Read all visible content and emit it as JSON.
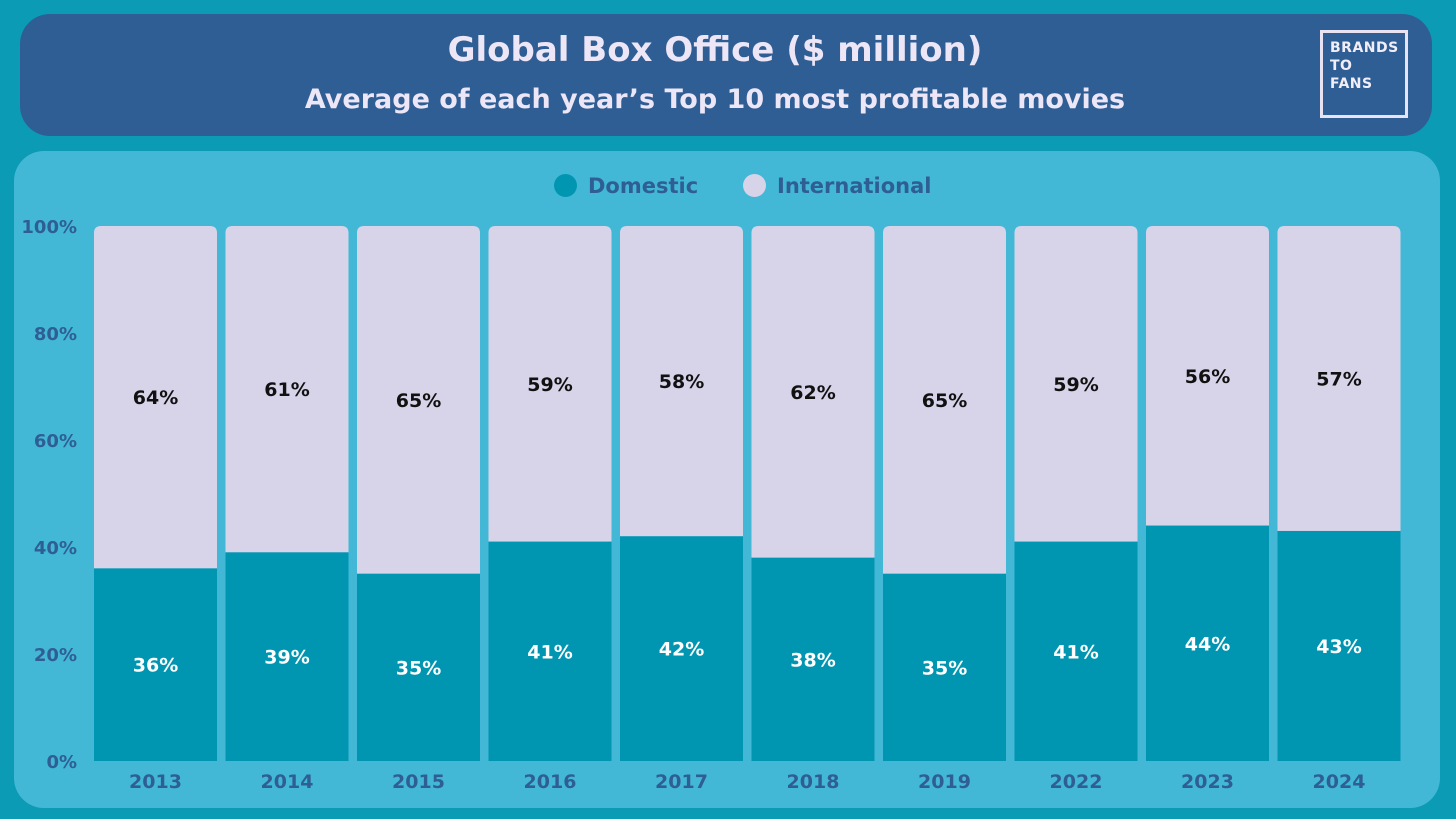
{
  "header": {
    "title": "Global Box Office ($ million)",
    "subtitle": "Average of each year’s Top 10 most profitable movies"
  },
  "logo": {
    "lines": [
      "BRANDS",
      "TO",
      "FANS"
    ]
  },
  "colors": {
    "domestic": "#0096b2",
    "international": "#d7d3e8"
  },
  "chart_data": {
    "type": "bar",
    "stacked": true,
    "title": "Global Box Office ($ million)",
    "subtitle": "Average of each year’s Top 10 most profitable movies",
    "categories": [
      "2013",
      "2014",
      "2015",
      "2016",
      "2017",
      "2018",
      "2019",
      "2022",
      "2023",
      "2024"
    ],
    "series": [
      {
        "name": "Domestic",
        "values": [
          36,
          39,
          35,
          41,
          42,
          38,
          35,
          41,
          44,
          43
        ],
        "labels": [
          "36%",
          "39%",
          "35%",
          "41%",
          "42%",
          "38%",
          "35%",
          "41%",
          "44%",
          "43%"
        ]
      },
      {
        "name": "International",
        "values": [
          64,
          61,
          65,
          59,
          58,
          62,
          65,
          59,
          56,
          57
        ],
        "labels": [
          "64%",
          "61%",
          "65%",
          "59%",
          "58%",
          "62%",
          "65%",
          "59%",
          "56%",
          "57%"
        ]
      }
    ],
    "ylim": [
      0,
      100
    ],
    "yticks": [
      "0%",
      "20%",
      "40%",
      "60%",
      "80%",
      "100%"
    ],
    "ytick_values": [
      0,
      20,
      40,
      60,
      80,
      100
    ],
    "xlabel": "",
    "ylabel": "",
    "grid": false,
    "legend": "top-center"
  }
}
